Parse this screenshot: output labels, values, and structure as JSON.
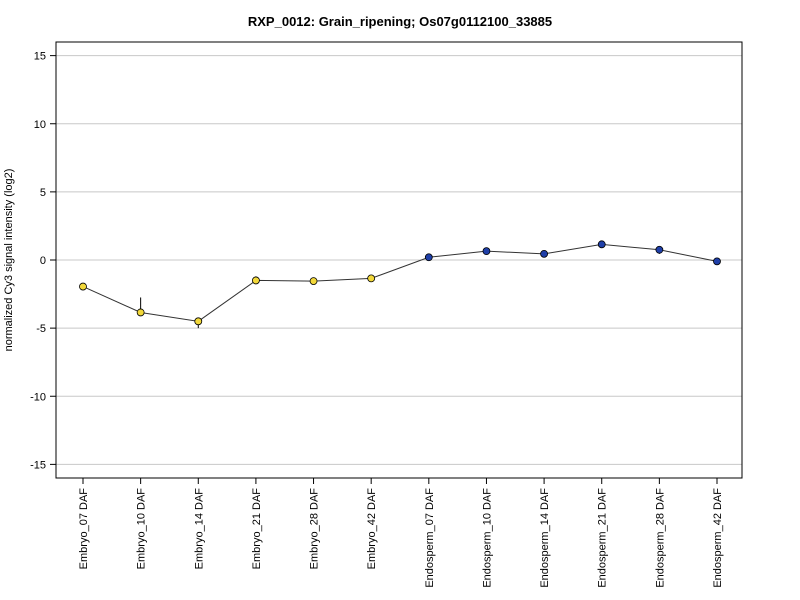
{
  "chart_data": {
    "type": "line",
    "title": "RXP_0012: Grain_ripening; Os07g0112100_33885",
    "xlabel": "",
    "ylabel": "normalized Cy3 signal intensity (log2)",
    "ylim": [
      -16,
      16
    ],
    "yticks": [
      -15,
      -10,
      -5,
      0,
      5,
      10,
      15
    ],
    "grid": true,
    "categories": [
      "Embryo_07 DAF",
      "Embryo_10 DAF",
      "Embryo_14 DAF",
      "Embryo_21 DAF",
      "Embryo_28 DAF",
      "Embryo_42 DAF",
      "Endosperm_07 DAF",
      "Endosperm_10 DAF",
      "Endosperm_14 DAF",
      "Endosperm_21 DAF",
      "Endosperm_28 DAF",
      "Endosperm_42 DAF"
    ],
    "values": [
      -1.95,
      -3.85,
      -4.5,
      -1.5,
      -1.55,
      -1.35,
      0.2,
      0.65,
      0.45,
      1.15,
      0.75,
      -0.1
    ],
    "error_high": [
      0.0,
      1.1,
      0.0,
      0.3,
      0.0,
      0.15,
      0.0,
      0.0,
      0.0,
      0.1,
      0.0,
      0.0
    ],
    "error_low": [
      0.0,
      0.0,
      0.5,
      0.0,
      0.0,
      0.0,
      0.0,
      0.0,
      0.0,
      0.0,
      0.3,
      0.0
    ],
    "point_colors": [
      "#f2d83a",
      "#f2d83a",
      "#f2d83a",
      "#f2d83a",
      "#f2d83a",
      "#f2d83a",
      "#1f3fa8",
      "#1f3fa8",
      "#1f3fa8",
      "#1f3fa8",
      "#1f3fa8",
      "#1f3fa8"
    ],
    "line_color": "#333333",
    "grid_color": "#c8c8c8"
  }
}
